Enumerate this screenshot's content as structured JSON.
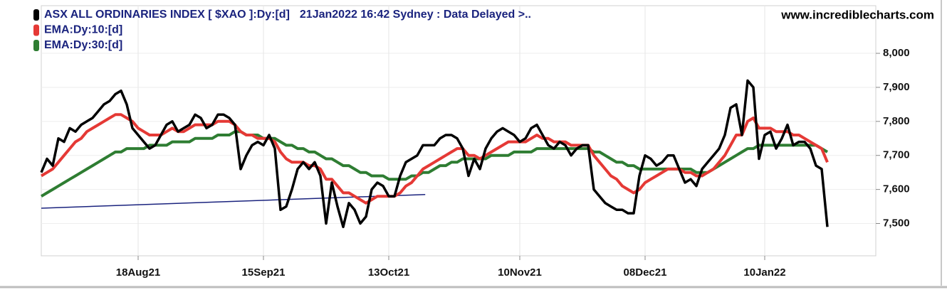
{
  "chart_data": {
    "type": "line",
    "subtitle": "21Jan2022 16:42 Sydney : Data Delayed >..",
    "watermark": "www.incrediblecharts.com",
    "categories": [
      null,
      null,
      null,
      null,
      null,
      null,
      null,
      null,
      null,
      null,
      null,
      null,
      null,
      null,
      null,
      null,
      null,
      "18Aug21",
      null,
      null,
      null,
      null,
      null,
      null,
      null,
      null,
      null,
      null,
      null,
      null,
      null,
      null,
      null,
      null,
      null,
      null,
      null,
      null,
      null,
      "15Sep21",
      null,
      null,
      null,
      null,
      null,
      null,
      null,
      null,
      null,
      null,
      null,
      null,
      null,
      null,
      null,
      null,
      null,
      null,
      null,
      null,
      null,
      "13Oct21",
      null,
      null,
      null,
      null,
      null,
      null,
      null,
      null,
      null,
      null,
      null,
      null,
      null,
      null,
      null,
      null,
      null,
      null,
      null,
      null,
      null,
      null,
      "10Nov21",
      null,
      null,
      null,
      null,
      null,
      null,
      null,
      null,
      null,
      null,
      null,
      null,
      null,
      null,
      null,
      null,
      null,
      null,
      null,
      null,
      null,
      "08Dec21",
      null,
      null,
      null,
      null,
      null,
      null,
      null,
      null,
      null,
      null,
      null,
      null,
      null,
      null,
      null,
      null,
      null,
      null,
      null,
      null,
      "10Jan22",
      null,
      null,
      null,
      null,
      null,
      null,
      null,
      null,
      null,
      null,
      null
    ],
    "series": [
      {
        "name": "ASX ALL ORDINARIES INDEX [ $XAO ]:Dy:[d]",
        "color": "#000000",
        "width": 3.5,
        "values": [
          7650,
          7690,
          7670,
          7750,
          7740,
          7780,
          7770,
          7790,
          7800,
          7810,
          7830,
          7850,
          7860,
          7880,
          7890,
          7850,
          7780,
          7760,
          7740,
          7720,
          7730,
          7760,
          7790,
          7800,
          7770,
          7780,
          7790,
          7820,
          7810,
          7780,
          7790,
          7820,
          7820,
          7810,
          7790,
          7660,
          7700,
          7730,
          7740,
          7730,
          7760,
          7720,
          7540,
          7550,
          7600,
          7660,
          7680,
          7660,
          7680,
          7640,
          7500,
          7620,
          7550,
          7490,
          7560,
          7540,
          7500,
          7520,
          7600,
          7620,
          7610,
          7580,
          7580,
          7640,
          7680,
          7690,
          7700,
          7730,
          7730,
          7730,
          7750,
          7760,
          7760,
          7750,
          7720,
          7640,
          7690,
          7660,
          7720,
          7750,
          7770,
          7780,
          7770,
          7760,
          7740,
          7750,
          7780,
          7790,
          7760,
          7730,
          7720,
          7740,
          7730,
          7700,
          7720,
          7730,
          7730,
          7600,
          7580,
          7560,
          7550,
          7540,
          7540,
          7530,
          7530,
          7640,
          7700,
          7690,
          7670,
          7680,
          7700,
          7700,
          7660,
          7620,
          7630,
          7610,
          7660,
          7680,
          7700,
          7720,
          7760,
          7840,
          7850,
          7760,
          7920,
          7900,
          7690,
          7760,
          7770,
          7720,
          7750,
          7790,
          7730,
          7740,
          7740,
          7720,
          7670,
          7660,
          7490
        ]
      },
      {
        "name": "EMA:Dy:10:[d]",
        "color": "#e53935",
        "width": 4,
        "values": [
          7640,
          7650,
          7660,
          7680,
          7700,
          7720,
          7740,
          7750,
          7770,
          7780,
          7790,
          7800,
          7810,
          7820,
          7820,
          7810,
          7800,
          7780,
          7770,
          7760,
          7760,
          7760,
          7770,
          7780,
          7770,
          7770,
          7780,
          7790,
          7790,
          7790,
          7790,
          7800,
          7800,
          7800,
          7790,
          7770,
          7760,
          7760,
          7750,
          7750,
          7750,
          7740,
          7710,
          7690,
          7680,
          7680,
          7680,
          7670,
          7670,
          7660,
          7630,
          7630,
          7610,
          7590,
          7590,
          7580,
          7570,
          7560,
          7570,
          7580,
          7580,
          7580,
          7580,
          7590,
          7610,
          7620,
          7640,
          7660,
          7670,
          7680,
          7690,
          7700,
          7710,
          7720,
          7720,
          7700,
          7700,
          7690,
          7700,
          7710,
          7720,
          7730,
          7740,
          7740,
          7740,
          7740,
          7750,
          7760,
          7750,
          7750,
          7740,
          7740,
          7740,
          7730,
          7730,
          7730,
          7730,
          7700,
          7680,
          7660,
          7640,
          7630,
          7610,
          7600,
          7590,
          7600,
          7620,
          7630,
          7640,
          7650,
          7660,
          7660,
          7660,
          7650,
          7650,
          7640,
          7640,
          7650,
          7660,
          7680,
          7700,
          7730,
          7760,
          7760,
          7800,
          7810,
          7780,
          7780,
          7780,
          7770,
          7770,
          7770,
          7760,
          7760,
          7750,
          7740,
          7730,
          7720,
          7680
        ]
      },
      {
        "name": "EMA:Dy:30:[d]",
        "color": "#2e7d32",
        "width": 4,
        "values": [
          7580,
          7590,
          7600,
          7610,
          7620,
          7630,
          7640,
          7650,
          7660,
          7670,
          7680,
          7690,
          7700,
          7710,
          7710,
          7720,
          7720,
          7720,
          7720,
          7730,
          7730,
          7730,
          7730,
          7740,
          7740,
          7740,
          7740,
          7750,
          7750,
          7750,
          7750,
          7760,
          7760,
          7760,
          7770,
          7770,
          7760,
          7760,
          7760,
          7750,
          7750,
          7750,
          7740,
          7730,
          7730,
          7720,
          7720,
          7710,
          7710,
          7700,
          7690,
          7690,
          7680,
          7670,
          7670,
          7660,
          7650,
          7650,
          7640,
          7640,
          7640,
          7630,
          7630,
          7630,
          7630,
          7640,
          7640,
          7650,
          7650,
          7660,
          7670,
          7670,
          7680,
          7680,
          7690,
          7690,
          7690,
          7690,
          7690,
          7700,
          7700,
          7700,
          7700,
          7710,
          7710,
          7710,
          7710,
          7720,
          7720,
          7720,
          7720,
          7720,
          7720,
          7720,
          7720,
          7720,
          7720,
          7710,
          7710,
          7700,
          7690,
          7680,
          7680,
          7670,
          7670,
          7660,
          7660,
          7660,
          7660,
          7660,
          7660,
          7660,
          7660,
          7660,
          7660,
          7650,
          7650,
          7650,
          7660,
          7670,
          7680,
          7690,
          7700,
          7710,
          7720,
          7720,
          7730,
          7730,
          7730,
          7730,
          7730,
          7730,
          7730,
          7730,
          7730,
          7730,
          7730,
          7720,
          7710
        ]
      }
    ],
    "trendline": {
      "color": "#1a237e",
      "start": [
        0,
        7545
      ],
      "end": [
        67.4,
        7585
      ]
    },
    "ylim": [
      7405,
      8140
    ],
    "yticks": [
      {
        "value": 7500,
        "label": "7,500"
      },
      {
        "value": 7600,
        "label": "7,600"
      },
      {
        "value": 7700,
        "label": "7,700"
      },
      {
        "value": 7800,
        "label": "7,800"
      },
      {
        "value": 7900,
        "label": "7,900"
      },
      {
        "value": 8000,
        "label": "8,000"
      }
    ],
    "grid": true,
    "legend": "top-left"
  }
}
